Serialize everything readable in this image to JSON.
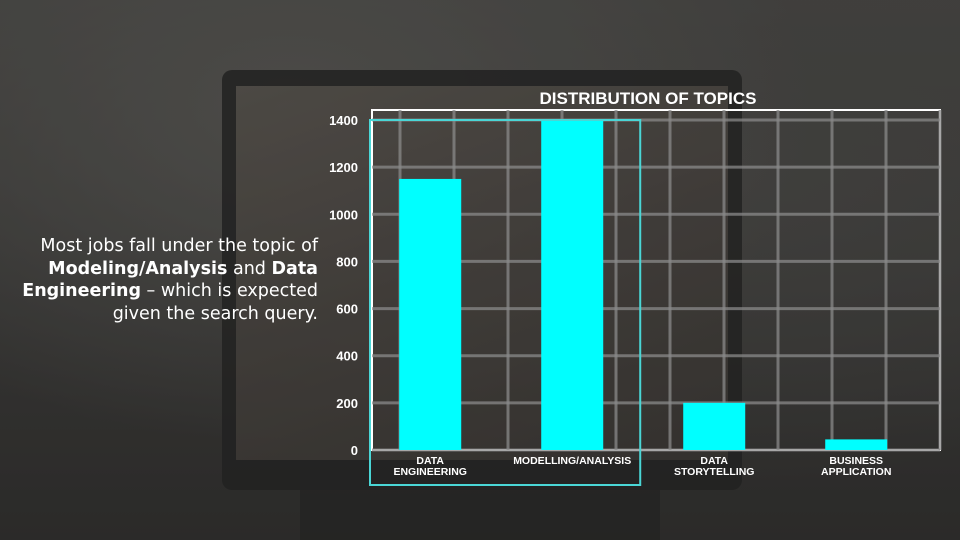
{
  "caption": {
    "part1": "Most jobs fall under the topic of ",
    "bold1": "Modeling/Analysis",
    "part2": " and ",
    "bold2": "Data Engineering",
    "part3": " – which is expected given the search query."
  },
  "colors": {
    "bar": "#00ffff",
    "highlight": "#4ad6d6",
    "grid": "#8a8a8a",
    "text": "#ffffff"
  },
  "chart_data": {
    "type": "bar",
    "title": "DISTRIBUTION OF TOPICS",
    "xlabel": "",
    "ylabel": "",
    "categories": [
      [
        "DATA",
        "ENGINEERING"
      ],
      [
        "MODELLING/ANALYSIS"
      ],
      [
        "DATA",
        "STORYTELLING"
      ],
      [
        "BUSINESS",
        "APPLICATION"
      ]
    ],
    "values": [
      1150,
      1420,
      200,
      45
    ],
    "ylim": [
      0,
      1400
    ],
    "yticks": [
      0,
      200,
      400,
      600,
      800,
      1000,
      1200,
      1400
    ],
    "grid": true,
    "highlighted_categories": [
      0,
      1
    ]
  }
}
